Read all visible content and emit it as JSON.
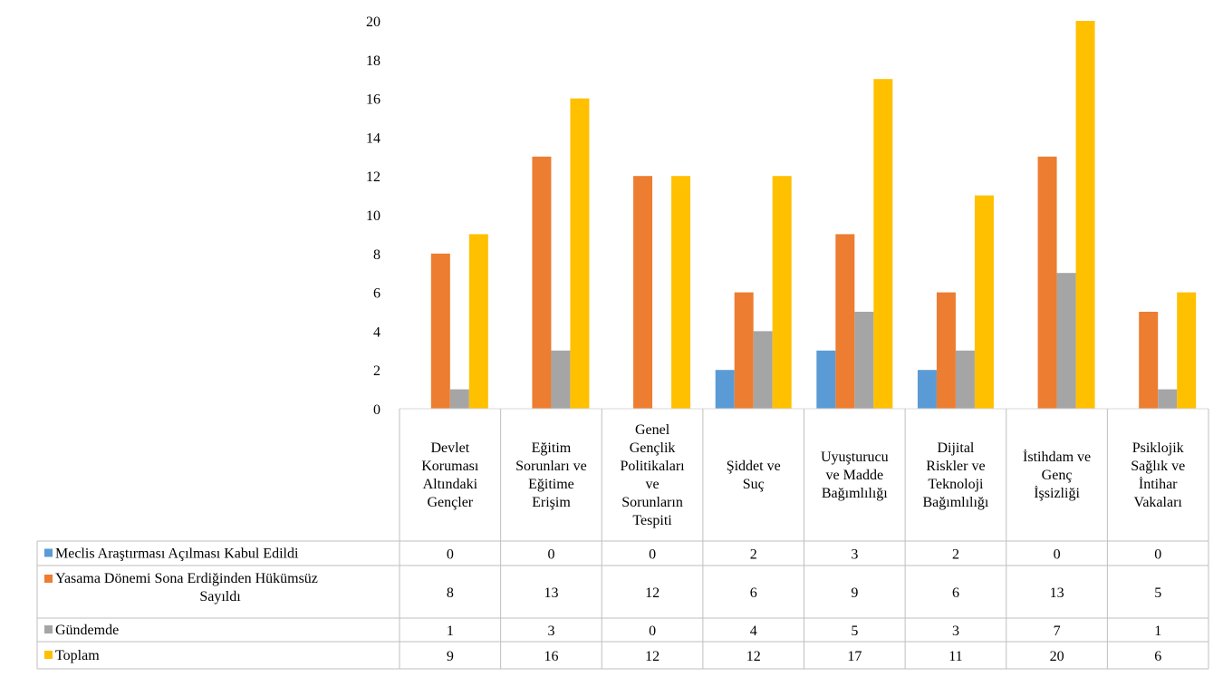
{
  "chart_data": {
    "type": "bar",
    "title": "",
    "xlabel": "",
    "ylabel": "",
    "ylim": [
      0,
      20
    ],
    "yticks": [
      0,
      2,
      4,
      6,
      8,
      10,
      12,
      14,
      16,
      18,
      20
    ],
    "grid": false,
    "legend": "data-table-left",
    "categories": [
      [
        "Devlet",
        "Koruması",
        "Altındaki",
        "Gençler"
      ],
      [
        "Eğitim",
        "Sorunları ve",
        "Eğitime",
        "Erişim"
      ],
      [
        "Genel",
        "Gençlik",
        "Politikaları",
        "ve",
        "Sorunların",
        "Tespiti"
      ],
      [
        "Şiddet ve",
        "Suç"
      ],
      [
        "Uyuşturucu",
        "ve Madde",
        "Bağımlılığı"
      ],
      [
        "Dijital",
        "Riskler ve",
        "Teknoloji",
        "Bağımlılığı"
      ],
      [
        "İstihdam ve",
        "Genç",
        "İşsizliği"
      ],
      [
        "Psiklojik",
        "Sağlık ve",
        "İntihar",
        "Vakaları"
      ]
    ],
    "series": [
      {
        "name": [
          "Meclis Araştırması Açılması Kabul Edildi"
        ],
        "color": "#5b9bd5",
        "values": [
          0,
          0,
          0,
          2,
          3,
          2,
          0,
          0
        ]
      },
      {
        "name": [
          "Yasama Dönemi Sona Erdiğinden Hükümsüz",
          "Sayıldı"
        ],
        "color": "#ed7d31",
        "values": [
          8,
          13,
          12,
          6,
          9,
          6,
          13,
          5
        ]
      },
      {
        "name": [
          "Gündemde"
        ],
        "color": "#a5a5a5",
        "values": [
          1,
          3,
          0,
          4,
          5,
          3,
          7,
          1
        ]
      },
      {
        "name": [
          "Toplam"
        ],
        "color": "#ffc000",
        "values": [
          9,
          16,
          12,
          12,
          17,
          11,
          20,
          6
        ]
      }
    ]
  }
}
